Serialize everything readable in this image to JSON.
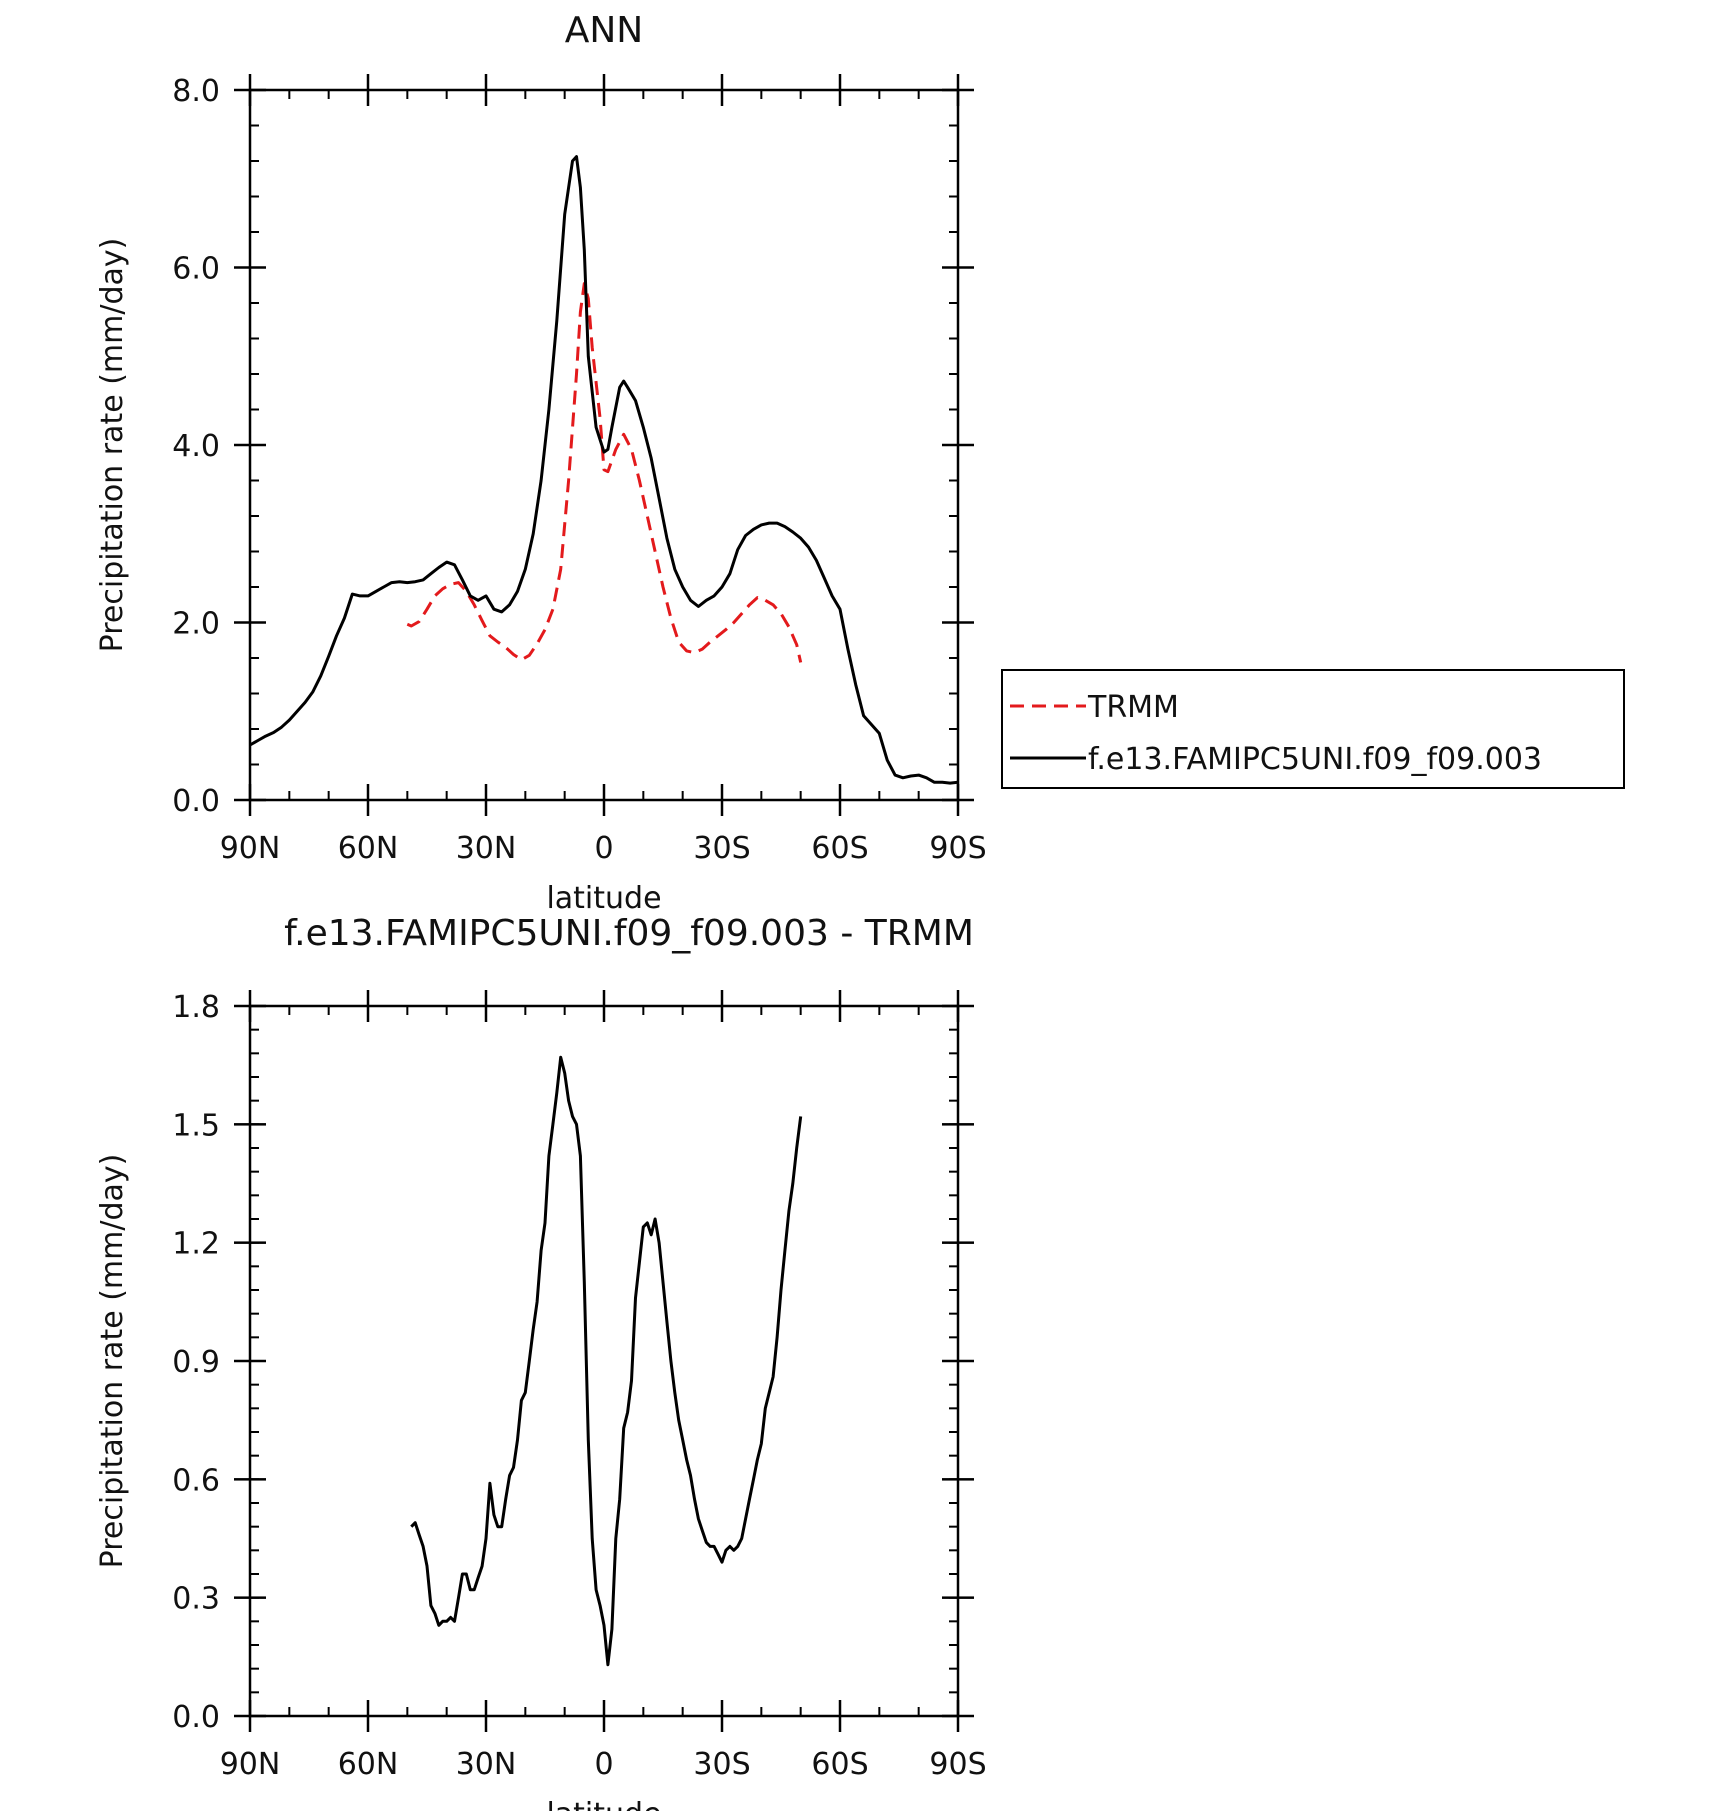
{
  "chart_data": [
    {
      "type": "line",
      "title": "ANN",
      "xlabel": "latitude",
      "ylabel": "Precipitation rate (mm/day)",
      "xlim": [
        90,
        -90
      ],
      "ylim": [
        0,
        8
      ],
      "x_ticks": [
        {
          "value": 90,
          "label": "90N"
        },
        {
          "value": 60,
          "label": "60N"
        },
        {
          "value": 30,
          "label": "30N"
        },
        {
          "value": 0,
          "label": "0"
        },
        {
          "value": -30,
          "label": "30S"
        },
        {
          "value": -60,
          "label": "60S"
        },
        {
          "value": -90,
          "label": "90S"
        }
      ],
      "y_ticks": [
        {
          "value": 0,
          "label": "0.0"
        },
        {
          "value": 2,
          "label": "2.0"
        },
        {
          "value": 4,
          "label": "4.0"
        },
        {
          "value": 6,
          "label": "6.0"
        },
        {
          "value": 8,
          "label": "8.0"
        }
      ],
      "legend": {
        "placement": "right",
        "entries": [
          "TRMM",
          "f.e13.FAMIPC5UNI.f09_f09.003"
        ]
      },
      "series": [
        {
          "name": "TRMM",
          "color": "#e31a1c",
          "dash": true,
          "x": [
            50,
            49,
            47,
            45,
            43,
            41,
            39,
            37,
            35,
            33,
            31,
            29,
            27,
            25,
            23,
            21,
            19,
            17,
            15,
            13,
            11,
            9,
            7,
            6,
            5,
            4,
            3,
            1,
            0,
            -1,
            -3,
            -5,
            -7,
            -9,
            -11,
            -13,
            -15,
            -17,
            -19,
            -21,
            -23,
            -25,
            -27,
            -29,
            -31,
            -33,
            -35,
            -37,
            -39,
            -41,
            -43,
            -45,
            -47,
            -49,
            -50
          ],
          "y": [
            1.98,
            1.96,
            2.01,
            2.15,
            2.3,
            2.38,
            2.43,
            2.45,
            2.35,
            2.2,
            2.02,
            1.85,
            1.78,
            1.72,
            1.64,
            1.58,
            1.63,
            1.76,
            1.92,
            2.15,
            2.6,
            3.6,
            4.8,
            5.5,
            5.82,
            5.65,
            5.1,
            4.3,
            3.72,
            3.7,
            3.95,
            4.12,
            3.95,
            3.6,
            3.2,
            2.8,
            2.4,
            2.05,
            1.78,
            1.68,
            1.66,
            1.7,
            1.78,
            1.85,
            1.92,
            2.0,
            2.1,
            2.2,
            2.28,
            2.25,
            2.2,
            2.1,
            1.95,
            1.75,
            1.55
          ]
        },
        {
          "name": "f.e13.FAMIPC5UNI.f09_f09.003",
          "color": "#000000",
          "dash": false,
          "x": [
            90,
            88,
            86,
            84,
            82,
            80,
            78,
            76,
            74,
            72,
            70,
            68,
            66,
            64,
            62,
            60,
            58,
            56,
            54,
            52,
            50,
            48,
            46,
            44,
            42,
            40,
            38,
            36,
            34,
            32,
            30,
            28,
            26,
            24,
            22,
            20,
            18,
            16,
            14,
            12,
            10,
            8,
            7,
            6,
            5,
            4,
            2,
            0,
            -1,
            -2,
            -4,
            -5,
            -6,
            -8,
            -10,
            -12,
            -14,
            -16,
            -18,
            -20,
            -22,
            -24,
            -26,
            -28,
            -30,
            -32,
            -34,
            -36,
            -38,
            -40,
            -42,
            -44,
            -46,
            -48,
            -50,
            -52,
            -54,
            -56,
            -58,
            -60,
            -62,
            -64,
            -66,
            -68,
            -70,
            -72,
            -74,
            -76,
            -78,
            -80,
            -82,
            -84,
            -86,
            -88,
            -90
          ],
          "y": [
            0.62,
            0.67,
            0.72,
            0.76,
            0.82,
            0.9,
            1.0,
            1.1,
            1.22,
            1.4,
            1.62,
            1.85,
            2.05,
            2.32,
            2.3,
            2.3,
            2.35,
            2.4,
            2.45,
            2.46,
            2.45,
            2.46,
            2.48,
            2.55,
            2.62,
            2.68,
            2.65,
            2.48,
            2.3,
            2.25,
            2.3,
            2.15,
            2.12,
            2.2,
            2.35,
            2.6,
            3.0,
            3.6,
            4.4,
            5.4,
            6.6,
            7.2,
            7.25,
            6.9,
            6.2,
            5.0,
            4.2,
            3.92,
            3.95,
            4.2,
            4.65,
            4.72,
            4.65,
            4.5,
            4.2,
            3.85,
            3.4,
            2.95,
            2.6,
            2.4,
            2.25,
            2.18,
            2.25,
            2.3,
            2.4,
            2.55,
            2.82,
            2.98,
            3.05,
            3.1,
            3.12,
            3.12,
            3.08,
            3.02,
            2.95,
            2.85,
            2.7,
            2.5,
            2.3,
            2.15,
            1.7,
            1.3,
            0.95,
            0.85,
            0.75,
            0.45,
            0.28,
            0.25,
            0.27,
            0.28,
            0.25,
            0.2,
            0.2,
            0.19,
            0.2
          ]
        }
      ]
    },
    {
      "type": "line",
      "title": "f.e13.FAMIPC5UNI.f09_f09.003 - TRMM",
      "xlabel": "latitude",
      "ylabel": "Precipitation rate (mm/day)",
      "xlim": [
        90,
        -90
      ],
      "ylim": [
        0,
        1.8
      ],
      "x_ticks": [
        {
          "value": 90,
          "label": "90N"
        },
        {
          "value": 60,
          "label": "60N"
        },
        {
          "value": 30,
          "label": "30N"
        },
        {
          "value": 0,
          "label": "0"
        },
        {
          "value": -30,
          "label": "30S"
        },
        {
          "value": -60,
          "label": "60S"
        },
        {
          "value": -90,
          "label": "90S"
        }
      ],
      "y_ticks": [
        {
          "value": 0,
          "label": "0.0"
        },
        {
          "value": 0.3,
          "label": "0.3"
        },
        {
          "value": 0.6,
          "label": "0.6"
        },
        {
          "value": 0.9,
          "label": "0.9"
        },
        {
          "value": 1.2,
          "label": "1.2"
        },
        {
          "value": 1.5,
          "label": "1.5"
        },
        {
          "value": 1.8,
          "label": "1.8"
        }
      ],
      "series": [
        {
          "color": "#000000",
          "dash": false,
          "x": [
            49,
            48,
            47,
            46,
            45,
            44,
            43,
            42,
            41,
            40,
            39,
            38,
            37,
            36,
            35,
            34,
            33,
            32,
            31,
            30,
            29,
            28,
            27,
            26,
            25,
            24,
            23,
            22,
            21,
            20,
            19,
            18,
            17,
            16,
            15,
            14,
            13,
            12,
            11,
            10,
            9,
            8,
            7,
            6,
            5,
            4,
            3,
            2,
            1,
            0,
            -1,
            -2,
            -3,
            -4,
            -5,
            -6,
            -7,
            -8,
            -9,
            -10,
            -11,
            -12,
            -13,
            -14,
            -15,
            -16,
            -17,
            -18,
            -19,
            -20,
            -21,
            -22,
            -23,
            -24,
            -25,
            -26,
            -27,
            -28,
            -29,
            -30,
            -31,
            -32,
            -33,
            -34,
            -35,
            -36,
            -37,
            -38,
            -39,
            -40,
            -41,
            -42,
            -43,
            -44,
            -45,
            -46,
            -47,
            -48,
            -49,
            -50
          ],
          "y": [
            0.48,
            0.49,
            0.46,
            0.43,
            0.38,
            0.28,
            0.26,
            0.23,
            0.24,
            0.24,
            0.25,
            0.24,
            0.3,
            0.36,
            0.36,
            0.32,
            0.32,
            0.35,
            0.38,
            0.45,
            0.59,
            0.51,
            0.48,
            0.48,
            0.55,
            0.61,
            0.63,
            0.7,
            0.8,
            0.82,
            0.9,
            0.98,
            1.05,
            1.18,
            1.25,
            1.42,
            1.5,
            1.58,
            1.67,
            1.63,
            1.56,
            1.52,
            1.5,
            1.42,
            1.1,
            0.7,
            0.45,
            0.32,
            0.28,
            0.23,
            0.13,
            0.22,
            0.45,
            0.55,
            0.73,
            0.77,
            0.85,
            1.06,
            1.15,
            1.24,
            1.25,
            1.22,
            1.26,
            1.2,
            1.1,
            1.0,
            0.9,
            0.82,
            0.75,
            0.7,
            0.65,
            0.61,
            0.55,
            0.5,
            0.47,
            0.44,
            0.43,
            0.43,
            0.41,
            0.39,
            0.42,
            0.43,
            0.42,
            0.43,
            0.45,
            0.5,
            0.55,
            0.6,
            0.65,
            0.69,
            0.78,
            0.82,
            0.86,
            0.96,
            1.08,
            1.18,
            1.28,
            1.35,
            1.44,
            1.52
          ]
        }
      ]
    }
  ]
}
